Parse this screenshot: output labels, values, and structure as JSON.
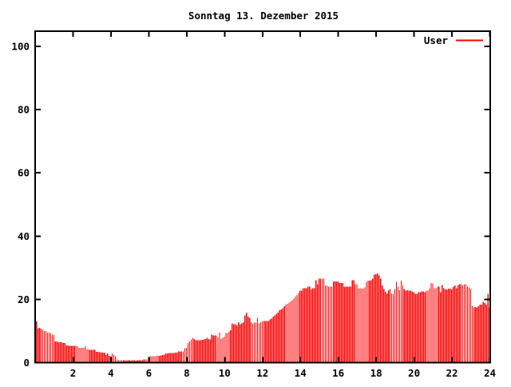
{
  "title": "Sonntag 13. Dezember 2015",
  "legend": {
    "label": "User",
    "color": "#ff0000"
  },
  "axes": {
    "y_tick_labels": [
      "0",
      "20",
      "40",
      "60",
      "80",
      "100"
    ],
    "x_tick_labels": [
      "2",
      "4",
      "6",
      "8",
      "10",
      "12",
      "14",
      "16",
      "18",
      "20",
      "22",
      "24"
    ]
  },
  "colors": {
    "bar": "#ff0000",
    "axis": "#000000",
    "background": "#ffffff"
  },
  "chart_data": {
    "type": "bar",
    "title": "Sonntag 13. Dezember 2015",
    "xlabel": "",
    "ylabel": "",
    "xlim": [
      0,
      24
    ],
    "ylim": [
      0,
      105
    ],
    "x_ticks": [
      2,
      4,
      6,
      8,
      10,
      12,
      14,
      16,
      18,
      20,
      22,
      24
    ],
    "y_ticks": [
      0,
      20,
      40,
      60,
      80,
      100
    ],
    "grid": false,
    "legend_position": "top-right-inside",
    "x_unit": "hour-of-day",
    "interval_minutes": 5,
    "series": [
      {
        "name": "User",
        "color": "#ff0000",
        "values": [
          13.0,
          10.9,
          11.0,
          10.6,
          10.5,
          10.0,
          10.0,
          9.5,
          9.5,
          9.4,
          8.9,
          8.9,
          6.7,
          6.7,
          6.5,
          6.5,
          6.5,
          6.2,
          6.2,
          5.4,
          5.4,
          5.3,
          5.3,
          5.3,
          5.3,
          5.3,
          5.2,
          4.7,
          4.7,
          4.7,
          4.7,
          5.2,
          4.2,
          4.2,
          4.1,
          4.1,
          4.0,
          4.0,
          3.4,
          3.4,
          3.3,
          3.3,
          3.2,
          3.2,
          2.4,
          2.9,
          2.2,
          2.0,
          2.9,
          2.4,
          2.0,
          1.0,
          0.8,
          0.7,
          0.7,
          0.7,
          0.7,
          0.6,
          0.7,
          0.7,
          0.6,
          0.7,
          0.7,
          0.6,
          0.7,
          0.7,
          0.8,
          0.8,
          1.0,
          1.0,
          1.0,
          1.1,
          2.0,
          2.0,
          2.0,
          2.0,
          2.1,
          2.1,
          2.2,
          2.3,
          2.4,
          2.5,
          2.9,
          2.9,
          3.0,
          3.0,
          3.0,
          3.0,
          3.1,
          3.2,
          3.5,
          3.5,
          3.6,
          3.6,
          4.6,
          4.7,
          6.2,
          6.7,
          7.3,
          7.9,
          7.5,
          7.1,
          7.1,
          7.1,
          7.1,
          7.2,
          7.3,
          7.5,
          7.8,
          7.5,
          7.3,
          8.8,
          8.6,
          8.6,
          8.6,
          8.0,
          9.5,
          7.5,
          7.8,
          8.2,
          9.3,
          9.3,
          9.9,
          10.3,
          12.4,
          12.2,
          12.2,
          11.7,
          12.8,
          12.2,
          12.4,
          12.8,
          14.9,
          15.8,
          14.5,
          14.1,
          12.8,
          12.4,
          12.7,
          12.7,
          14.1,
          12.4,
          12.8,
          13.1,
          13.2,
          13.2,
          13.2,
          13.2,
          13.7,
          13.9,
          14.5,
          14.9,
          15.4,
          15.8,
          16.5,
          16.8,
          17.2,
          17.8,
          18.3,
          18.6,
          19.0,
          19.3,
          19.7,
          20.2,
          20.8,
          21.4,
          22.0,
          22.7,
          22.7,
          23.5,
          23.5,
          23.5,
          24.0,
          24.0,
          23.1,
          23.5,
          23.5,
          26.1,
          24.8,
          26.5,
          26.5,
          26.5,
          26.5,
          24.4,
          24.4,
          24.0,
          24.0,
          24.0,
          25.7,
          25.7,
          25.7,
          25.7,
          25.2,
          25.2,
          25.2,
          24.0,
          24.0,
          24.0,
          24.0,
          24.0,
          26.0,
          26.0,
          24.8,
          24.8,
          23.5,
          23.5,
          23.4,
          23.4,
          23.8,
          25.6,
          25.9,
          25.9,
          26.1,
          26.5,
          27.8,
          27.9,
          28.2,
          27.6,
          26.5,
          24.4,
          23.2,
          22.4,
          21.9,
          22.9,
          23.2,
          21.9,
          21.8,
          23.2,
          25.5,
          24.0,
          22.9,
          25.9,
          24.4,
          23.2,
          22.8,
          22.9,
          22.7,
          22.7,
          22.5,
          22.3,
          21.8,
          21.8,
          22.3,
          22.3,
          22.5,
          22.5,
          22.3,
          22.7,
          22.7,
          23.5,
          25.2,
          25.0,
          23.5,
          23.5,
          24.0,
          24.0,
          22.3,
          24.5,
          23.5,
          23.1,
          23.1,
          23.4,
          23.4,
          23.1,
          24.0,
          24.4,
          23.5,
          24.5,
          24.8,
          24.8,
          24.5,
          24.8,
          24.8,
          24.0,
          23.8,
          23.2,
          17.9,
          17.5,
          17.6,
          17.5,
          17.8,
          18.3,
          18.3,
          19.2,
          18.9,
          18.3,
          21.7,
          17.4
        ]
      }
    ]
  }
}
